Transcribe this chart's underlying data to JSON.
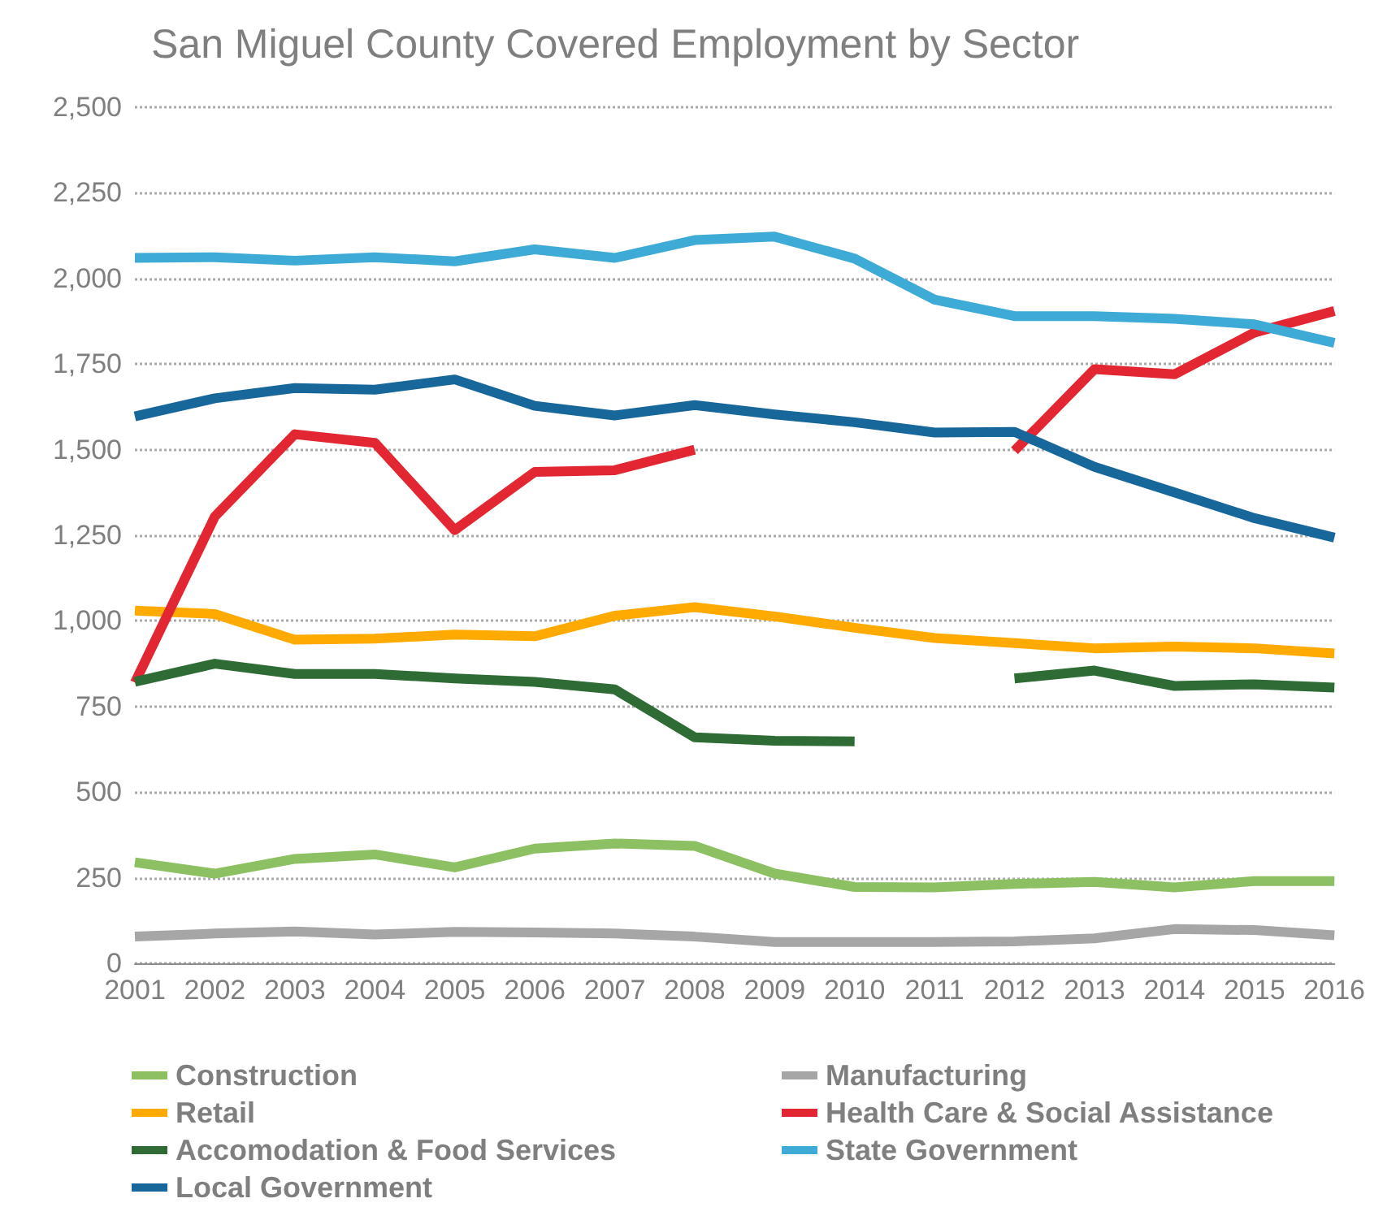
{
  "chart_data": {
    "type": "line",
    "title": "San Miguel County Covered Employment by Sector",
    "categories": [
      "2001",
      "2002",
      "2003",
      "2004",
      "2005",
      "2006",
      "2007",
      "2008",
      "2009",
      "2010",
      "2011",
      "2012",
      "2013",
      "2014",
      "2015",
      "2016"
    ],
    "series": [
      {
        "name": "Construction",
        "color": "#8cc063",
        "values": [
          295,
          262,
          305,
          318,
          280,
          335,
          350,
          343,
          262,
          223,
          222,
          232,
          238,
          222,
          240,
          240
        ]
      },
      {
        "name": "Manufacturing",
        "color": "#a6a6a6",
        "values": [
          78,
          87,
          93,
          84,
          92,
          90,
          87,
          78,
          62,
          62,
          62,
          64,
          73,
          100,
          97,
          82
        ]
      },
      {
        "name": "Retail",
        "color": "#ffaa00",
        "values": [
          1030,
          1020,
          945,
          948,
          960,
          955,
          1015,
          1040,
          1013,
          980,
          950,
          935,
          920,
          925,
          920,
          905
        ]
      },
      {
        "name": "Health Care & Social Assistance",
        "color": "#e32732",
        "values": [
          820,
          1305,
          1545,
          1520,
          1265,
          1435,
          1440,
          1500,
          null,
          null,
          null,
          1497,
          1735,
          1720,
          1842,
          1905
        ]
      },
      {
        "name": "Accomodation & Food Services",
        "color": "#2e6b35",
        "values": [
          822,
          875,
          845,
          845,
          832,
          822,
          800,
          660,
          650,
          648,
          null,
          832,
          855,
          810,
          815,
          805
        ]
      },
      {
        "name": "State Government",
        "color": "#3eaad6",
        "values": [
          2060,
          2062,
          2052,
          2062,
          2050,
          2085,
          2060,
          2112,
          2122,
          2058,
          1938,
          1890,
          1890,
          1882,
          1866,
          1812
        ]
      },
      {
        "name": "Local Government",
        "color": "#18679a",
        "values": [
          1597,
          1650,
          1680,
          1675,
          1705,
          1628,
          1600,
          1630,
          1603,
          1580,
          1550,
          1552,
          1450,
          1375,
          1300,
          1243
        ]
      }
    ],
    "ylim": [
      0,
      2500
    ],
    "yticks": [
      0,
      250,
      500,
      750,
      {
        "value": 1000,
        "label": "1,000"
      },
      {
        "value": 1250,
        "label": "1,250"
      },
      {
        "value": 1500,
        "label": "1,500"
      },
      {
        "value": 1750,
        "label": "1,750"
      },
      {
        "value": 2000,
        "label": "2,000"
      },
      {
        "value": 2250,
        "label": "2,250"
      },
      {
        "value": 2500,
        "label": "2,500"
      }
    ],
    "grid": "y",
    "legend": "bottom",
    "marker": "none",
    "line_style": "solid"
  }
}
